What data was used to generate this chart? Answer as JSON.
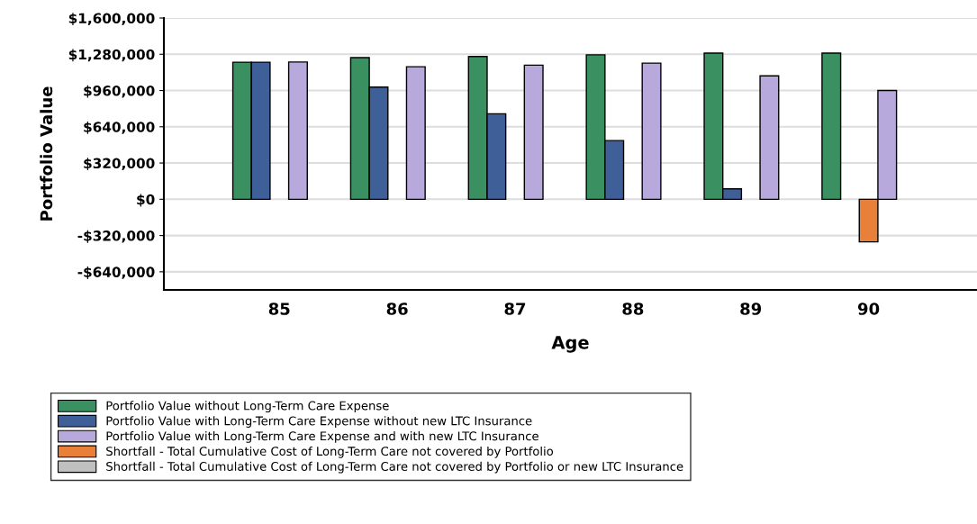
{
  "chart_data": {
    "type": "bar",
    "xlabel": "Age",
    "ylabel": "Portfolio Value",
    "categories": [
      "85",
      "86",
      "87",
      "88",
      "89",
      "90"
    ],
    "series": [
      {
        "name": "Portfolio Value without Long-Term Care Expense",
        "color": "#3a9060",
        "values": [
          1210000,
          1250000,
          1260000,
          1275000,
          1290000,
          1290000
        ]
      },
      {
        "name": "Portfolio Value with Long-Term Care Expense without new LTC Insurance",
        "color": "#3f5f98",
        "values": [
          1210000,
          990000,
          755000,
          518000,
          92000,
          null
        ]
      },
      {
        "name": "Portfolio Value with Long-Term Care Expense and with new LTC Insurance",
        "color": "#b8a9dc",
        "values": [
          1212000,
          1170000,
          1184000,
          1202000,
          1089000,
          960000
        ]
      },
      {
        "name": "Shortfall - Total Cumulative Cost of Long-Term Care not covered by Portfolio",
        "color": "#e8803a",
        "values": [
          null,
          null,
          null,
          null,
          null,
          -376000
        ]
      },
      {
        "name": "Shortfall - Total Cumulative Cost of Long-Term Care not covered by Portfolio or new LTC Insurance",
        "color": "#c0c0c0",
        "values": [
          null,
          null,
          null,
          null,
          null,
          null
        ]
      }
    ],
    "ylim": [
      -800000,
      1600000
    ],
    "yticks": [
      {
        "value": -640000,
        "label": "-$640,000"
      },
      {
        "value": -320000,
        "label": "-$320,000"
      },
      {
        "value": 0,
        "label": "$0"
      },
      {
        "value": 320000,
        "label": "$320,000"
      },
      {
        "value": 640000,
        "label": "$640,000"
      },
      {
        "value": 960000,
        "label": "$960,000"
      },
      {
        "value": 1280000,
        "label": "$1,280,000"
      },
      {
        "value": 1600000,
        "label": "$1,600,000"
      }
    ],
    "grid": "y",
    "legend": "bottom"
  }
}
